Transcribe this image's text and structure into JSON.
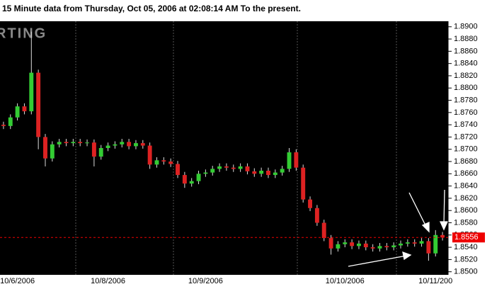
{
  "chart_data": {
    "type": "candlestick",
    "title": "15 Minute  data from Thursday, Oct 05, 2006 at 02:08:14 AM To the present.",
    "watermark": "RTING",
    "categories": [
      null,
      null,
      "10/6/2006",
      null,
      null,
      null,
      null,
      null,
      null,
      null,
      null,
      null,
      null,
      null,
      null,
      "10/8/2006",
      null,
      null,
      null,
      null,
      null,
      null,
      null,
      null,
      null,
      null,
      null,
      null,
      null,
      "10/9/2006",
      null,
      null,
      null,
      null,
      null,
      null,
      null,
      null,
      null,
      null,
      null,
      null,
      null,
      null,
      null,
      null,
      null,
      null,
      null,
      "10/10/2006",
      null,
      null,
      null,
      null,
      null,
      null,
      null,
      null,
      null,
      null,
      null,
      null,
      "10/11/200",
      null
    ],
    "open": [
      1.874,
      1.8738,
      1.8752,
      1.877,
      1.8762,
      1.8825,
      1.872,
      1.8685,
      1.8708,
      1.8712,
      1.871,
      1.8712,
      1.871,
      1.8711,
      1.8688,
      1.8702,
      1.8706,
      1.8708,
      1.8712,
      1.8705,
      1.871,
      1.8706,
      1.8675,
      1.8682,
      1.868,
      1.8676,
      1.8658,
      1.8644,
      1.8648,
      1.866,
      1.8662,
      1.8668,
      1.8672,
      1.867,
      1.8668,
      1.8672,
      1.8664,
      1.866,
      1.8665,
      1.8658,
      1.8662,
      1.8668,
      1.8695,
      1.867,
      1.8618,
      1.8604,
      1.858,
      1.8555,
      1.8538,
      1.8545,
      1.8548,
      1.8542,
      1.8546,
      1.854,
      1.8538,
      1.8542,
      1.854,
      1.8543,
      1.8546,
      1.8548,
      1.8546,
      1.855,
      1.853,
      1.856
    ],
    "high": [
      1.8745,
      1.8757,
      1.8775,
      1.8775,
      1.8892,
      1.883,
      1.8725,
      1.8713,
      1.8717,
      1.8717,
      1.8717,
      1.8717,
      1.8716,
      1.8716,
      1.8707,
      1.8711,
      1.8713,
      1.8717,
      1.8717,
      1.8715,
      1.8715,
      1.8711,
      1.8687,
      1.8687,
      1.8685,
      1.8681,
      1.8663,
      1.8653,
      1.8665,
      1.8667,
      1.8673,
      1.8677,
      1.8677,
      1.8675,
      1.8677,
      1.8677,
      1.8669,
      1.867,
      1.867,
      1.8667,
      1.8673,
      1.8702,
      1.87,
      1.8675,
      1.8623,
      1.8609,
      1.8585,
      1.856,
      1.855,
      1.8553,
      1.8553,
      1.8551,
      1.8551,
      1.8545,
      1.8547,
      1.8547,
      1.8548,
      1.8551,
      1.8553,
      1.8553,
      1.8555,
      1.8555,
      1.8568,
      1.8565
    ],
    "low": [
      1.8733,
      1.8733,
      1.8747,
      1.8757,
      1.8757,
      1.87,
      1.8672,
      1.868,
      1.8703,
      1.8705,
      1.8705,
      1.8705,
      1.8705,
      1.8672,
      1.8683,
      1.8697,
      1.8701,
      1.8703,
      1.87,
      1.87,
      1.8701,
      1.8668,
      1.867,
      1.8675,
      1.8671,
      1.8653,
      1.8637,
      1.8639,
      1.8643,
      1.8655,
      1.8657,
      1.8663,
      1.8665,
      1.8663,
      1.8663,
      1.8659,
      1.8655,
      1.8655,
      1.8653,
      1.8653,
      1.8657,
      1.8663,
      1.8665,
      1.8613,
      1.8599,
      1.8575,
      1.855,
      1.8528,
      1.8533,
      1.854,
      1.8537,
      1.8537,
      1.8535,
      1.8533,
      1.8533,
      1.8535,
      1.8535,
      1.8538,
      1.8541,
      1.8541,
      1.8541,
      1.8518,
      1.8525,
      1.8551
    ],
    "close": [
      1.8738,
      1.8752,
      1.877,
      1.8762,
      1.8825,
      1.872,
      1.8685,
      1.8708,
      1.8712,
      1.871,
      1.8712,
      1.871,
      1.8711,
      1.8688,
      1.8702,
      1.8706,
      1.8708,
      1.8712,
      1.8705,
      1.871,
      1.8706,
      1.8675,
      1.8682,
      1.868,
      1.8676,
      1.8658,
      1.8644,
      1.8648,
      1.866,
      1.8662,
      1.8668,
      1.8672,
      1.867,
      1.8668,
      1.8672,
      1.8664,
      1.866,
      1.8665,
      1.8658,
      1.8662,
      1.8668,
      1.8695,
      1.867,
      1.8618,
      1.8604,
      1.858,
      1.8555,
      1.8538,
      1.8545,
      1.8548,
      1.8542,
      1.8546,
      1.854,
      1.8538,
      1.8542,
      1.854,
      1.8543,
      1.8546,
      1.8548,
      1.8546,
      1.855,
      1.853,
      1.856,
      1.8556
    ],
    "up_color": "#33cc33",
    "down_color": "#dd2222",
    "wick_color": "#dddddd",
    "ylim": [
      1.8495,
      1.8909
    ],
    "yticks": [
      {
        "value": 1.85,
        "label": "1.8500"
      },
      {
        "value": 1.852,
        "label": "1.8520"
      },
      {
        "value": 1.854,
        "label": "1.8540"
      },
      {
        "value": 1.856,
        "label": "1.8560"
      },
      {
        "value": 1.858,
        "label": "1.8580"
      },
      {
        "value": 1.86,
        "label": "1.8600"
      },
      {
        "value": 1.862,
        "label": "1.8620"
      },
      {
        "value": 1.864,
        "label": "1.8640"
      },
      {
        "value": 1.866,
        "label": "1.8660"
      },
      {
        "value": 1.868,
        "label": "1.8680"
      },
      {
        "value": 1.87,
        "label": "1.8700"
      },
      {
        "value": 1.872,
        "label": "1.8720"
      },
      {
        "value": 1.874,
        "label": "1.8740"
      },
      {
        "value": 1.876,
        "label": "1.8760"
      },
      {
        "value": 1.878,
        "label": "1.8780"
      },
      {
        "value": 1.88,
        "label": "1.8800"
      },
      {
        "value": 1.882,
        "label": "1.8820"
      },
      {
        "value": 1.884,
        "label": "1.8840"
      },
      {
        "value": 1.886,
        "label": "1.8860"
      },
      {
        "value": 1.888,
        "label": "1.8880"
      },
      {
        "value": 1.89,
        "label": "1.8900"
      }
    ],
    "last_price": {
      "value": 1.8556,
      "label": "1.8556"
    },
    "last_color": "#ee0000"
  }
}
